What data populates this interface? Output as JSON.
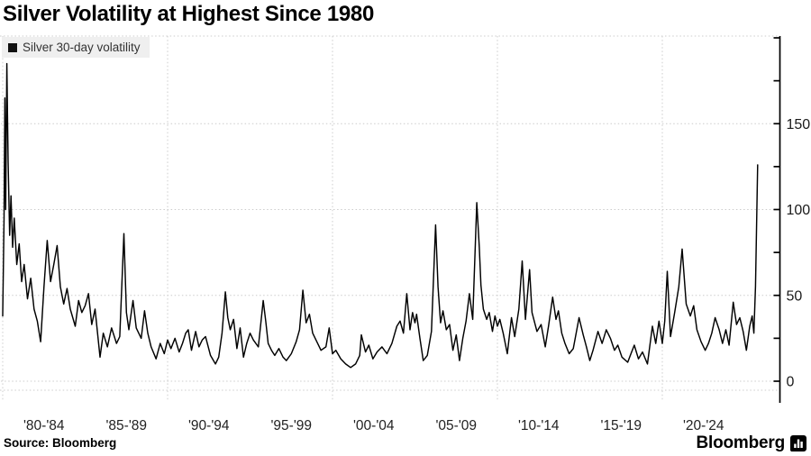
{
  "title": "Silver Volatility at Highest Since 1980",
  "legend": {
    "label": "Silver 30-day volatility",
    "swatch_color": "#111111"
  },
  "source": "Source: Bloomberg",
  "brand": {
    "name": "Bloomberg",
    "icon": "bloomberg-bars-bubble-icon"
  },
  "colors": {
    "background": "#ffffff",
    "line": "#000000",
    "grid": "#cccccc",
    "axis": "#000000",
    "y_tick_label": "#1a1a1a",
    "x_tick_label": "#222222",
    "legend_bg": "#efefef"
  },
  "chart_data": {
    "type": "line",
    "title": "Silver Volatility at Highest Since 1980",
    "xlabel": "",
    "ylabel": "",
    "legend_position": "top-left",
    "grid": true,
    "y_axis": {
      "side": "right",
      "major_ticks": [
        0,
        50,
        100,
        150
      ],
      "minor_tick_step": 25,
      "range": [
        -5,
        200
      ]
    },
    "x_axis": {
      "tick_labels": [
        "'80-'84",
        "'85-'89",
        "'90-'94",
        "'95-'99",
        "'00-'04",
        "'05-'09",
        "'10-'14",
        "'15-'19",
        "'20-'24"
      ],
      "tick_label_center_years": [
        1982.5,
        1987.5,
        1992.5,
        1997.5,
        2002.5,
        2007.5,
        2012.5,
        2017.5,
        2022.5
      ],
      "gridline_years": [
        1980,
        1990,
        2000,
        2010,
        2020
      ],
      "range_years": [
        1980,
        2026
      ]
    },
    "series": [
      {
        "name": "Silver 30-day volatility",
        "x": [
          1980.0,
          1980.08,
          1980.13,
          1980.18,
          1980.25,
          1980.33,
          1980.42,
          1980.5,
          1980.6,
          1980.7,
          1980.85,
          1981.0,
          1981.15,
          1981.3,
          1981.5,
          1981.7,
          1981.9,
          1982.1,
          1982.3,
          1982.5,
          1982.7,
          1982.9,
          1983.1,
          1983.3,
          1983.5,
          1983.7,
          1983.9,
          1984.1,
          1984.4,
          1984.6,
          1984.8,
          1985.0,
          1985.2,
          1985.4,
          1985.6,
          1985.9,
          1986.1,
          1986.35,
          1986.6,
          1986.9,
          1987.1,
          1987.35,
          1987.5,
          1987.65,
          1987.9,
          1988.1,
          1988.4,
          1988.6,
          1988.8,
          1989.0,
          1989.3,
          1989.55,
          1989.8,
          1990.0,
          1990.2,
          1990.45,
          1990.7,
          1990.9,
          1991.1,
          1991.25,
          1991.45,
          1991.7,
          1991.9,
          1992.1,
          1992.3,
          1992.6,
          1992.9,
          1993.1,
          1993.3,
          1993.5,
          1993.65,
          1993.8,
          1994.0,
          1994.2,
          1994.4,
          1994.6,
          1994.8,
          1995.0,
          1995.2,
          1995.5,
          1995.8,
          1995.95,
          1996.1,
          1996.3,
          1996.5,
          1996.75,
          1997.0,
          1997.2,
          1997.5,
          1997.8,
          1998.0,
          1998.2,
          1998.4,
          1998.6,
          1998.8,
          1999.0,
          1999.3,
          1999.6,
          1999.8,
          2000.0,
          2000.2,
          2000.5,
          2000.8,
          2001.1,
          2001.4,
          2001.65,
          2001.75,
          2002.0,
          2002.2,
          2002.45,
          2002.7,
          2003.0,
          2003.3,
          2003.6,
          2003.9,
          2004.1,
          2004.3,
          2004.5,
          2004.7,
          2004.85,
          2005.0,
          2005.1,
          2005.3,
          2005.5,
          2005.75,
          2006.0,
          2006.25,
          2006.4,
          2006.55,
          2006.7,
          2006.9,
          2007.1,
          2007.3,
          2007.5,
          2007.7,
          2007.9,
          2008.1,
          2008.3,
          2008.5,
          2008.75,
          2008.9,
          2009.0,
          2009.15,
          2009.35,
          2009.5,
          2009.7,
          2009.85,
          2010.0,
          2010.15,
          2010.35,
          2010.6,
          2010.85,
          2011.05,
          2011.3,
          2011.5,
          2011.7,
          2011.95,
          2012.1,
          2012.4,
          2012.65,
          2012.9,
          2013.1,
          2013.35,
          2013.55,
          2013.7,
          2013.9,
          2014.1,
          2014.35,
          2014.6,
          2014.95,
          2015.2,
          2015.4,
          2015.6,
          2015.8,
          2016.1,
          2016.35,
          2016.6,
          2016.85,
          2017.1,
          2017.3,
          2017.55,
          2017.9,
          2018.1,
          2018.3,
          2018.55,
          2018.8,
          2019.1,
          2019.4,
          2019.6,
          2019.8,
          2020.0,
          2020.15,
          2020.3,
          2020.5,
          2020.75,
          2021.0,
          2021.2,
          2021.45,
          2021.7,
          2021.9,
          2022.1,
          2022.35,
          2022.6,
          2022.8,
          2023.0,
          2023.2,
          2023.45,
          2023.65,
          2023.85,
          2024.05,
          2024.3,
          2024.5,
          2024.7,
          2024.9,
          2025.1,
          2025.3,
          2025.45,
          2025.55,
          2025.65,
          2025.78
        ],
        "values": [
          38,
          95,
          165,
          100,
          185,
          128,
          85,
          108,
          78,
          95,
          68,
          80,
          58,
          68,
          48,
          60,
          42,
          35,
          23,
          55,
          82,
          58,
          68,
          79,
          55,
          45,
          54,
          42,
          32,
          47,
          40,
          44,
          51,
          33,
          42,
          14,
          28,
          20,
          31,
          22,
          26,
          86,
          40,
          30,
          47,
          31,
          25,
          41,
          28,
          20,
          13,
          22,
          16,
          24,
          19,
          25,
          17,
          22,
          28,
          30,
          18,
          29,
          20,
          24,
          26,
          15,
          10,
          14,
          28,
          52,
          37,
          30,
          36,
          19,
          31,
          14,
          22,
          28,
          24,
          20,
          47,
          35,
          22,
          18,
          15,
          19,
          14,
          12,
          16,
          23,
          30,
          53,
          34,
          39,
          28,
          24,
          18,
          20,
          31,
          16,
          18,
          13,
          10,
          8,
          10,
          15,
          27,
          17,
          21,
          13,
          17,
          20,
          16,
          22,
          32,
          35,
          28,
          51,
          30,
          40,
          34,
          39,
          25,
          12,
          15,
          29,
          91,
          55,
          34,
          41,
          30,
          33,
          18,
          27,
          12,
          25,
          35,
          51,
          36,
          104,
          78,
          56,
          42,
          36,
          40,
          29,
          38,
          32,
          36,
          28,
          16,
          37,
          26,
          42,
          70,
          36,
          65,
          40,
          29,
          33,
          20,
          32,
          49,
          36,
          41,
          28,
          22,
          16,
          19,
          37,
          27,
          20,
          12,
          18,
          29,
          22,
          30,
          25,
          18,
          21,
          14,
          11,
          16,
          21,
          13,
          17,
          10,
          32,
          22,
          35,
          22,
          35,
          64,
          26,
          40,
          55,
          77,
          45,
          38,
          44,
          30,
          23,
          18,
          22,
          28,
          37,
          30,
          22,
          30,
          21,
          46,
          33,
          37,
          29,
          18,
          32,
          38,
          28,
          55,
          126
        ]
      }
    ]
  }
}
